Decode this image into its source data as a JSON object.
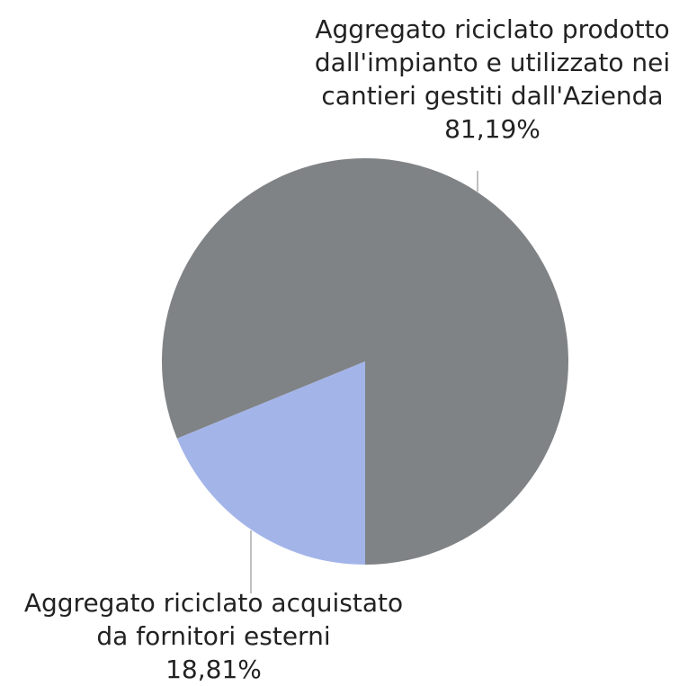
{
  "chart_data": {
    "type": "pie",
    "categories": [
      "Aggregato riciclato prodotto dall'impianto e utilizzato nei cantieri gestiti dall'Azienda",
      "Aggregato riciclato acquistato da fornitori esterni"
    ],
    "values": [
      81.19,
      18.81
    ],
    "value_labels": [
      "81,19%",
      "18,81%"
    ],
    "colors": [
      "#808386",
      "#a3b4e8"
    ]
  }
}
